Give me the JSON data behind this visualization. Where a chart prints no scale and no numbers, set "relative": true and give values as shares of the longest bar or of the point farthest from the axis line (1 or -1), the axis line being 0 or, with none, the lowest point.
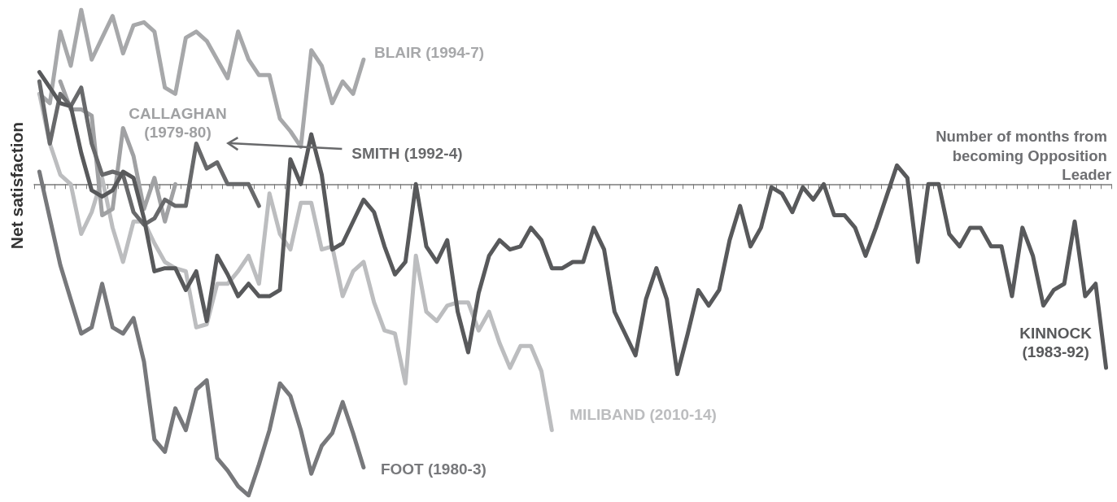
{
  "chart_data": {
    "type": "line",
    "relative": true,
    "xlabel": "Number of months from becoming Opposition Leader",
    "ylabel": "Net satisfaction",
    "marker": "none",
    "line_style": "solid",
    "categories": [
      null,
      null,
      null,
      null,
      null,
      null,
      null,
      null,
      null,
      null,
      null,
      null,
      null,
      null,
      null,
      null,
      null,
      null,
      null,
      null,
      null,
      null,
      null,
      null,
      null,
      null,
      null,
      null,
      null,
      null,
      null,
      null,
      null,
      null,
      null,
      null,
      null,
      null,
      null,
      null,
      null,
      null,
      null,
      null,
      null,
      null,
      null,
      null,
      null,
      null,
      null,
      null,
      null,
      null,
      null,
      null,
      null,
      null,
      null,
      null,
      null,
      null,
      null,
      null,
      null,
      null,
      null,
      null,
      null,
      null,
      null,
      null,
      null,
      null,
      null,
      null,
      null,
      null,
      null,
      null,
      null,
      null,
      null,
      null,
      null,
      null,
      null,
      null,
      null,
      null,
      null,
      null,
      null,
      null,
      null,
      null,
      null,
      null,
      null,
      null,
      null,
      null,
      null
    ],
    "series": [
      {
        "name": "BLAIR (1994-7)",
        "color": "#a7a8aa",
        "values": [
          0.29,
          0.26,
          0.49,
          0.38,
          0.56,
          0.4,
          0.47,
          0.54,
          0.42,
          0.51,
          0.52,
          0.49,
          0.31,
          0.29,
          0.47,
          0.49,
          0.46,
          0.4,
          0.34,
          0.49,
          0.4,
          0.35,
          0.35,
          0.21,
          0.17,
          0.12,
          0.43,
          0.38,
          0.26,
          0.33,
          0.29,
          0.4,
          null,
          null,
          null,
          null,
          null,
          null,
          null,
          null,
          null,
          null,
          null,
          null,
          null,
          null,
          null,
          null,
          null,
          null,
          null,
          null,
          null,
          null,
          null,
          null,
          null,
          null,
          null,
          null,
          null,
          null,
          null,
          null,
          null,
          null,
          null,
          null,
          null,
          null,
          null,
          null,
          null,
          null,
          null,
          null,
          null,
          null,
          null,
          null,
          null,
          null,
          null,
          null,
          null,
          null,
          null,
          null,
          null,
          null,
          null,
          null,
          null,
          null,
          null,
          null,
          null,
          null,
          null,
          null,
          null,
          null,
          null
        ]
      },
      {
        "name": "MILIBAND (2010-14)",
        "color": "#bcbdbf",
        "values": [
          0.29,
          0.13,
          0.03,
          0.0,
          -0.16,
          -0.09,
          0.02,
          -0.14,
          -0.25,
          -0.12,
          -0.12,
          -0.19,
          -0.25,
          -0.27,
          -0.28,
          -0.46,
          -0.45,
          -0.32,
          -0.32,
          -0.28,
          -0.23,
          -0.32,
          -0.03,
          -0.16,
          -0.21,
          -0.06,
          -0.06,
          -0.21,
          -0.2,
          -0.36,
          -0.28,
          -0.25,
          -0.38,
          -0.47,
          -0.48,
          -0.64,
          -0.23,
          -0.41,
          -0.44,
          -0.39,
          -0.38,
          -0.38,
          -0.47,
          -0.41,
          -0.51,
          -0.59,
          -0.52,
          -0.52,
          -0.6,
          -0.79,
          null,
          null,
          null,
          null,
          null,
          null,
          null,
          null,
          null,
          null,
          null,
          null,
          null,
          null,
          null,
          null,
          null,
          null,
          null,
          null,
          null,
          null,
          null,
          null,
          null,
          null,
          null,
          null,
          null,
          null,
          null,
          null,
          null,
          null,
          null,
          null,
          null,
          null,
          null,
          null,
          null,
          null,
          null,
          null,
          null,
          null,
          null,
          null,
          null,
          null,
          null,
          null,
          null
        ]
      },
      {
        "name": "FOOT (1980-3)",
        "color": "#77787b",
        "values": [
          0.04,
          -0.11,
          -0.26,
          -0.37,
          -0.48,
          -0.46,
          -0.32,
          -0.46,
          -0.48,
          -0.43,
          -0.57,
          -0.82,
          -0.86,
          -0.72,
          -0.79,
          -0.66,
          -0.63,
          -0.88,
          -0.92,
          -0.97,
          -1,
          -0.9,
          -0.79,
          -0.64,
          -0.68,
          -0.79,
          -0.93,
          -0.84,
          -0.8,
          -0.7,
          -0.8,
          -0.91,
          null,
          null,
          null,
          null,
          null,
          null,
          null,
          null,
          null,
          null,
          null,
          null,
          null,
          null,
          null,
          null,
          null,
          null,
          null,
          null,
          null,
          null,
          null,
          null,
          null,
          null,
          null,
          null,
          null,
          null,
          null,
          null,
          null,
          null,
          null,
          null,
          null,
          null,
          null,
          null,
          null,
          null,
          null,
          null,
          null,
          null,
          null,
          null,
          null,
          null,
          null,
          null,
          null,
          null,
          null,
          null,
          null,
          null,
          null,
          null,
          null,
          null,
          null,
          null,
          null,
          null,
          null,
          null,
          null,
          null,
          null
        ]
      },
      {
        "name": "CALLAGHAN (1979-80)",
        "color": "#a0a1a3",
        "values": [
          null,
          null,
          0.33,
          0.24,
          0.24,
          0.22,
          -0.1,
          -0.08,
          0.18,
          0.09,
          -0.08,
          0.02,
          -0.12,
          0.0,
          null,
          null,
          null,
          null,
          null,
          null,
          null,
          null,
          null,
          null,
          null,
          null,
          null,
          null,
          null,
          null,
          null,
          null,
          null,
          null,
          null,
          null,
          null,
          null,
          null,
          null,
          null,
          null,
          null,
          null,
          null,
          null,
          null,
          null,
          null,
          null,
          null,
          null,
          null,
          null,
          null,
          null,
          null,
          null,
          null,
          null,
          null,
          null,
          null,
          null,
          null,
          null,
          null,
          null,
          null,
          null,
          null,
          null,
          null,
          null,
          null,
          null,
          null,
          null,
          null,
          null,
          null,
          null,
          null,
          null,
          null,
          null,
          null,
          null,
          null,
          null,
          null,
          null,
          null,
          null,
          null,
          null,
          null,
          null,
          null,
          null,
          null,
          null,
          null
        ]
      },
      {
        "name": "SMITH (1992-4)",
        "color": "#68696b",
        "values": [
          0.33,
          0.13,
          0.29,
          0.25,
          0.31,
          0.13,
          0.03,
          0.04,
          0.03,
          -0.09,
          -0.13,
          -0.11,
          -0.05,
          -0.07,
          -0.07,
          0.13,
          0.05,
          0.07,
          0.0,
          0.0,
          0.0,
          -0.07,
          null,
          null,
          null,
          null,
          null,
          null,
          null,
          null,
          null,
          null,
          null,
          null,
          null,
          null,
          null,
          null,
          null,
          null,
          null,
          null,
          null,
          null,
          null,
          null,
          null,
          null,
          null,
          null,
          null,
          null,
          null,
          null,
          null,
          null,
          null,
          null,
          null,
          null,
          null,
          null,
          null,
          null,
          null,
          null,
          null,
          null,
          null,
          null,
          null,
          null,
          null,
          null,
          null,
          null,
          null,
          null,
          null,
          null,
          null,
          null,
          null,
          null,
          null,
          null,
          null,
          null,
          null,
          null,
          null,
          null,
          null,
          null,
          null,
          null,
          null,
          null,
          null,
          null,
          null,
          null,
          null
        ]
      },
      {
        "name": "KINNOCK (1983-92)",
        "color": "#58595b",
        "values": [
          0.36,
          0.31,
          0.26,
          0.25,
          0.1,
          -0.02,
          -0.04,
          -0.02,
          0.04,
          0.02,
          -0.11,
          -0.28,
          -0.27,
          -0.27,
          -0.34,
          -0.28,
          -0.44,
          -0.23,
          -0.29,
          -0.36,
          -0.32,
          -0.36,
          -0.36,
          -0.34,
          0.08,
          0.0,
          0.16,
          0.03,
          -0.21,
          -0.19,
          -0.12,
          -0.05,
          -0.09,
          -0.2,
          -0.29,
          -0.25,
          0.0,
          -0.2,
          -0.25,
          -0.18,
          -0.41,
          -0.54,
          -0.35,
          -0.23,
          -0.18,
          -0.21,
          -0.2,
          -0.14,
          -0.18,
          -0.27,
          -0.27,
          -0.25,
          -0.25,
          -0.14,
          -0.21,
          -0.41,
          -0.48,
          -0.55,
          -0.37,
          -0.27,
          -0.37,
          -0.61,
          -0.48,
          -0.34,
          -0.39,
          -0.34,
          -0.18,
          -0.07,
          -0.2,
          -0.14,
          -0.01,
          -0.03,
          -0.09,
          -0.01,
          -0.05,
          0.0,
          -0.1,
          -0.1,
          -0.14,
          -0.23,
          -0.14,
          -0.04,
          0.06,
          0.02,
          -0.25,
          0.0,
          0.0,
          -0.16,
          -0.2,
          -0.14,
          -0.14,
          -0.2,
          -0.2,
          -0.36,
          -0.14,
          -0.23,
          -0.39,
          -0.34,
          -0.32,
          -0.12,
          -0.36,
          -0.32,
          -0.59
        ]
      }
    ]
  }
}
